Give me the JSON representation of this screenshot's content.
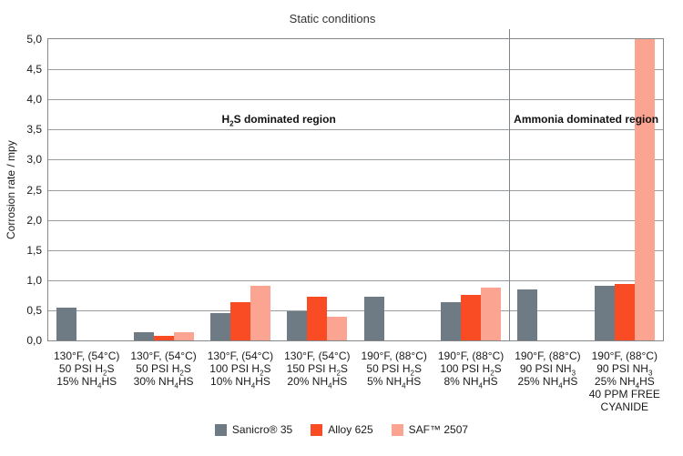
{
  "chart_data": {
    "type": "bar",
    "title": "Static conditions",
    "ylabel": "Corrosion rate / mpy",
    "ylim": [
      0,
      5
    ],
    "ytick_step": 0.5,
    "ytick_labels": [
      "0,0",
      "0,5",
      "1,0",
      "1,5",
      "2,0",
      "2,5",
      "3,0",
      "3,5",
      "4,0",
      "4,5",
      "5,0"
    ],
    "grid": true,
    "legend_position": "bottom",
    "categories": [
      [
        "130°F, (54°C)",
        "50 PSI H₂S",
        "15% NH₄HS"
      ],
      [
        "130°F, (54°C)",
        "50 PSI H₂S",
        "30% NH₄HS"
      ],
      [
        "130°F, (54°C)",
        "100 PSI H₂S",
        "10% NH₄HS"
      ],
      [
        "130°F, (54°C)",
        "150 PSI H₂S",
        "20% NH₄HS"
      ],
      [
        "190°F, (88°C)",
        "50 PSI H₂S",
        "5% NH₄HS"
      ],
      [
        "190°F, (88°C)",
        "100 PSI H₂S",
        "8% NH₄HS"
      ],
      [
        "190°F, (88°C)",
        "90 PSI NH₃",
        "25% NH₄HS"
      ],
      [
        "190°F, (88°C)",
        "90 PSI NH₃",
        "25% NH₄HS",
        "40 PPM FREE",
        "CYANIDE"
      ]
    ],
    "series": [
      {
        "name": "Sanicro® 35",
        "color": "#6e7b84",
        "values": [
          0.54,
          0.14,
          0.45,
          0.48,
          0.73,
          0.64,
          0.85,
          0.91
        ]
      },
      {
        "name": "Alloy 625",
        "color": "#f94c24",
        "values": [
          null,
          0.08,
          0.63,
          0.73,
          null,
          0.76,
          null,
          0.93
        ]
      },
      {
        "name": "SAF™ 2507",
        "color": "#fba492",
        "values": [
          null,
          0.14,
          0.9,
          0.39,
          null,
          0.87,
          null,
          5.0
        ]
      }
    ],
    "annotations": [
      {
        "text": "H₂S dominated region",
        "region": "left"
      },
      {
        "text": "Ammonia dominated region",
        "region": "right"
      }
    ],
    "region_divider_after_category": 6,
    "colors": {
      "gridline": "#989da0",
      "axis_border": "#85898c",
      "text": "#1a1a1a"
    }
  }
}
